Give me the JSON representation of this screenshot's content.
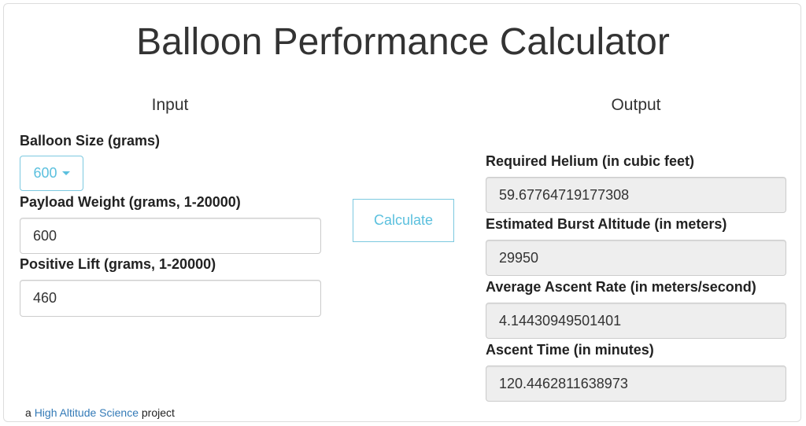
{
  "title": "Balloon Performance Calculator",
  "input": {
    "heading": "Input",
    "balloon_size_label": "Balloon Size (grams)",
    "balloon_size_value": "600",
    "payload_label": "Payload Weight (grams, 1-20000)",
    "payload_value": "600",
    "lift_label": "Positive Lift (grams, 1-20000)",
    "lift_value": "460"
  },
  "calculate_label": "Calculate",
  "output": {
    "heading": "Output",
    "fields": [
      {
        "label": "Required Helium (in cubic feet)",
        "value": "59.67764719177308"
      },
      {
        "label": "Estimated Burst Altitude (in meters)",
        "value": "29950"
      },
      {
        "label": "Average Ascent Rate (in meters/second)",
        "value": "4.14430949501401"
      },
      {
        "label": "Ascent Time (in minutes)",
        "value": "120.4462811638973"
      }
    ]
  },
  "footer": {
    "prefix": "a",
    "link": "High Altitude Science",
    "suffix": "project"
  },
  "colors": {
    "accent": "#5bc0de",
    "link": "#337ab7",
    "readonly_bg": "#eeeeee"
  }
}
